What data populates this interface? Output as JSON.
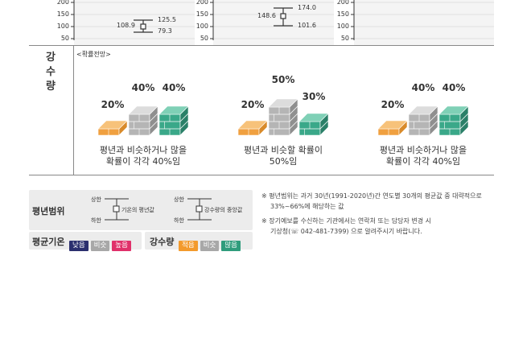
{
  "top_charts": [
    {
      "ticks": [
        "200",
        "150",
        "100",
        "50"
      ],
      "high": "125.5",
      "mid": "108.9",
      "low": "79.3"
    },
    {
      "ticks": [
        "200",
        "150",
        "100",
        "50"
      ],
      "high": "174.0",
      "mid": "148.6",
      "low": "101.6"
    },
    {
      "ticks": [
        "200",
        "150",
        "100",
        "50"
      ]
    }
  ],
  "precip": {
    "side_label": [
      "강",
      "수",
      "량"
    ],
    "subtitle": "<확률전망>",
    "groups": [
      {
        "low": "20%",
        "normal": "40%",
        "high": "40%",
        "levels": [
          0.2,
          0.4,
          0.4
        ],
        "desc": [
          "평년과 비슷하거나 많을",
          "확률이 각각 40%임"
        ]
      },
      {
        "low": "20%",
        "normal": "50%",
        "high": "30%",
        "levels": [
          0.2,
          0.5,
          0.3
        ],
        "desc": [
          "평년과 비슷할 확률이",
          "50%임"
        ]
      },
      {
        "low": "20%",
        "normal": "40%",
        "high": "40%",
        "levels": [
          0.2,
          0.4,
          0.4
        ],
        "desc": [
          "평년과 비슷하거나 많을",
          "확률이 각각 40%임"
        ]
      }
    ]
  },
  "legend": {
    "range_title": "평년범위",
    "upper": "상한",
    "lower": "하한",
    "temp_avg": "기온의 평년값",
    "rain_mid": "강수량의 중앙값",
    "temp_title": "평균기온",
    "temp_chips": [
      "낮음",
      "비슷",
      "높음"
    ],
    "rain_title": "강수량",
    "rain_chips": [
      "적음",
      "비슷",
      "많음"
    ]
  },
  "notes": {
    "n1_line1": "※  평년범위는 과거 30년(1991-2020년)간 연도별 30개의 평균값 중 대략적으로",
    "n1_line2": "33%~66%에 해당하는 값",
    "n2_line1": "※  장기예보를 수신하는 기관에서는 연락처 또는 담당자 변경 시",
    "n2_line2": "기상청(☏ 042-481-7399) 으로 알려주시기 바랍니다."
  },
  "colors": {
    "low_orange": "#f0a040",
    "normal_gray": "#b5b5b5",
    "high_teal": "#3aa889",
    "temp_low": "#2b2f6e",
    "temp_normal": "#a8a8a8",
    "temp_high": "#e0306a",
    "rain_low": "#f39a2c",
    "rain_normal": "#a8a8a8",
    "rain_high": "#2f9c7c"
  }
}
